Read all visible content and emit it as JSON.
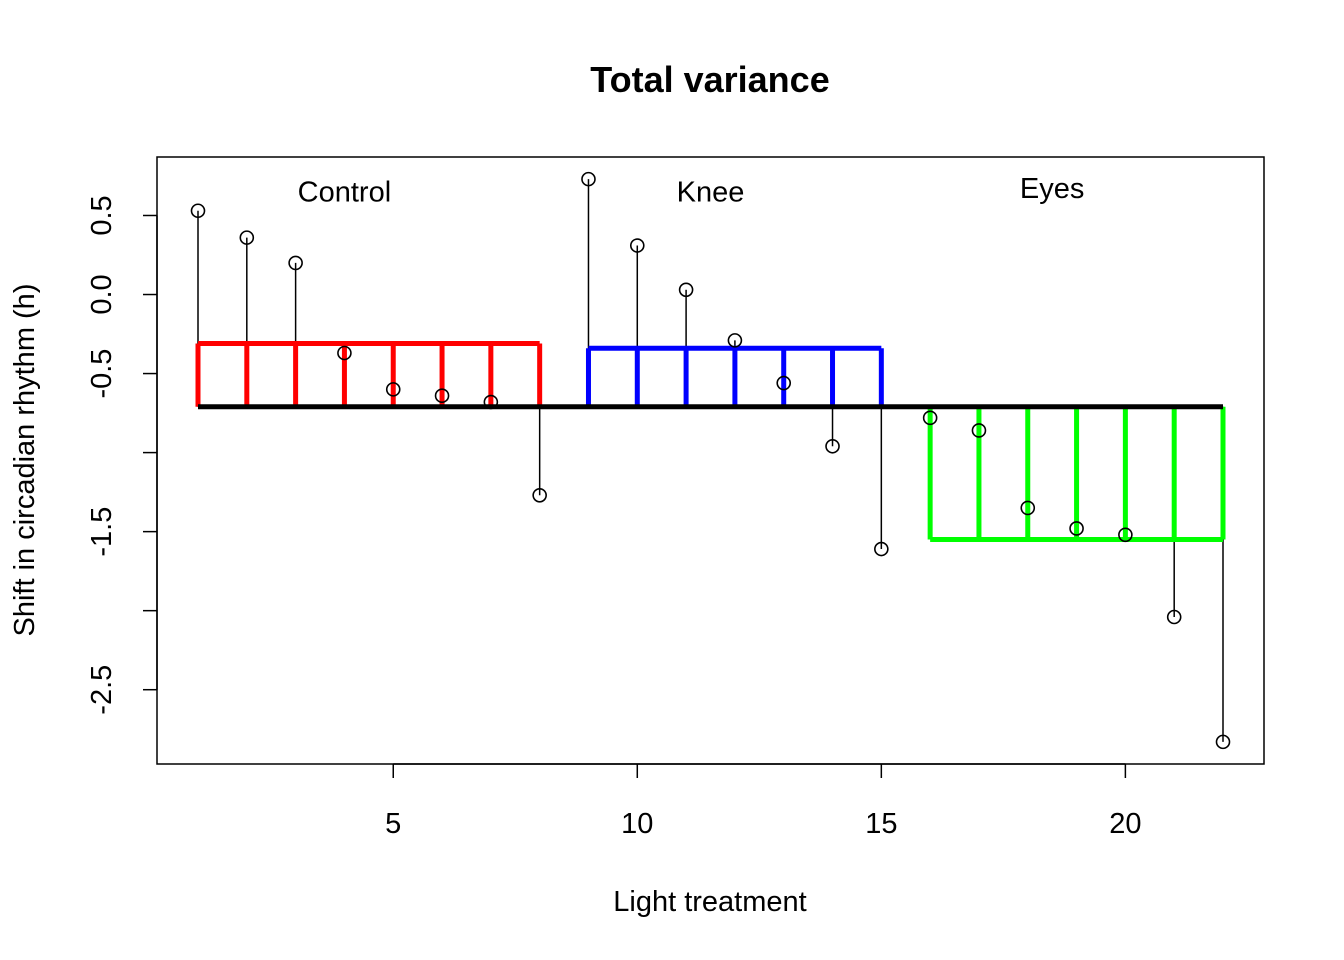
{
  "chart_data": {
    "type": "scatter",
    "title": "Total variance",
    "xlabel": "Light treatment",
    "ylabel": "Shift in circadian rhythm (h)",
    "xlim": [
      0.16,
      22.84
    ],
    "ylim": [
      -2.97,
      0.87
    ],
    "x_ticks": [
      5,
      10,
      15,
      20
    ],
    "y_ticks": [
      0.5,
      0.0,
      -0.5,
      -1.0,
      -1.5,
      -2.0,
      -2.5
    ],
    "y_tick_labels": [
      "0.5",
      "0.0",
      "-0.5",
      "",
      "-1.5",
      "",
      "-2.5"
    ],
    "grand_mean": -0.71,
    "points": [
      {
        "x": 1,
        "y": 0.53
      },
      {
        "x": 2,
        "y": 0.36
      },
      {
        "x": 3,
        "y": 0.2
      },
      {
        "x": 4,
        "y": -0.37
      },
      {
        "x": 5,
        "y": -0.6
      },
      {
        "x": 6,
        "y": -0.64
      },
      {
        "x": 7,
        "y": -0.68
      },
      {
        "x": 8,
        "y": -1.27
      },
      {
        "x": 9,
        "y": 0.73
      },
      {
        "x": 10,
        "y": 0.31
      },
      {
        "x": 11,
        "y": 0.03
      },
      {
        "x": 12,
        "y": -0.29
      },
      {
        "x": 13,
        "y": -0.56
      },
      {
        "x": 14,
        "y": -0.96
      },
      {
        "x": 15,
        "y": -1.61
      },
      {
        "x": 16,
        "y": -0.78
      },
      {
        "x": 17,
        "y": -0.86
      },
      {
        "x": 18,
        "y": -1.35
      },
      {
        "x": 19,
        "y": -1.48
      },
      {
        "x": 20,
        "y": -1.52
      },
      {
        "x": 21,
        "y": -2.04
      },
      {
        "x": 22,
        "y": -2.83
      }
    ],
    "groups": [
      {
        "name": "Control",
        "x_start": 1,
        "x_end": 8,
        "mean": -0.31,
        "color": "#ff0000",
        "label_x": 4,
        "label_y": 0.59
      },
      {
        "name": "Knee",
        "x_start": 9,
        "x_end": 15,
        "mean": -0.34,
        "color": "#0000ff",
        "label_x": 11.5,
        "label_y": 0.59
      },
      {
        "name": "Eyes",
        "x_start": 16,
        "x_end": 22,
        "mean": -1.55,
        "color": "#00ff00",
        "label_x": 18.5,
        "label_y": 0.61
      }
    ],
    "mean_line_color": "#000000",
    "grid": false,
    "legend": "none"
  }
}
